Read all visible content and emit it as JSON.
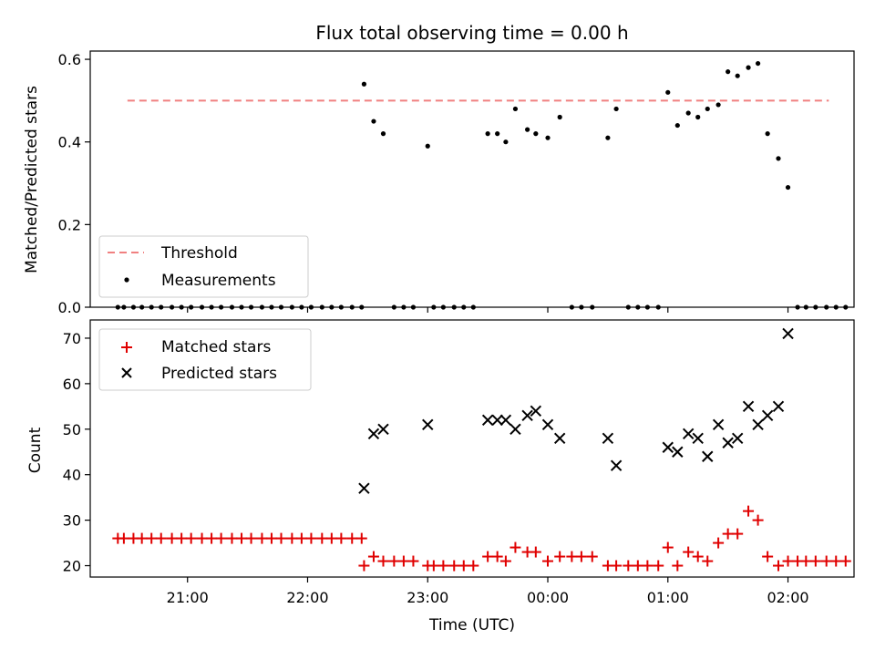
{
  "chart_data": [
    {
      "type": "scatter",
      "title": "Flux total observing time = 0.00 h",
      "xlabel": "",
      "ylabel": "Matched/Predicted stars",
      "ylim": [
        0,
        0.62
      ],
      "yticks": [
        "0.0",
        "0.2",
        "0.4",
        "0.6"
      ],
      "xlim_hours": [
        -3.31,
        3.05
      ],
      "legend_position": "lower-left",
      "threshold": {
        "name": "Threshold",
        "value": 0.5,
        "x_range_hours": [
          -3.0,
          2.84
        ],
        "color": "#f08080"
      },
      "series": [
        {
          "name": "Measurements",
          "color": "#000000",
          "points": [
            [
              -3.08,
              0
            ],
            [
              -3.03,
              0
            ],
            [
              -2.95,
              0
            ],
            [
              -2.88,
              0
            ],
            [
              -2.8,
              0
            ],
            [
              -2.72,
              0
            ],
            [
              -2.63,
              0
            ],
            [
              -2.55,
              0
            ],
            [
              -2.47,
              0
            ],
            [
              -2.38,
              0
            ],
            [
              -2.3,
              0
            ],
            [
              -2.22,
              0
            ],
            [
              -2.13,
              0
            ],
            [
              -2.05,
              0
            ],
            [
              -1.97,
              0
            ],
            [
              -1.88,
              0
            ],
            [
              -1.8,
              0
            ],
            [
              -1.72,
              0
            ],
            [
              -1.63,
              0
            ],
            [
              -1.55,
              0
            ],
            [
              -1.47,
              0
            ],
            [
              -1.38,
              0
            ],
            [
              -1.3,
              0
            ],
            [
              -1.22,
              0
            ],
            [
              -1.13,
              0
            ],
            [
              -1.05,
              0
            ],
            [
              -1.03,
              0.54
            ],
            [
              -0.95,
              0.45
            ],
            [
              -0.87,
              0.42
            ],
            [
              -0.78,
              0
            ],
            [
              -0.7,
              0
            ],
            [
              -0.62,
              0
            ],
            [
              -0.5,
              0.39
            ],
            [
              -0.45,
              0
            ],
            [
              -0.37,
              0
            ],
            [
              -0.28,
              0
            ],
            [
              -0.2,
              0
            ],
            [
              -0.12,
              0
            ],
            [
              0.0,
              0.42
            ],
            [
              0.08,
              0.42
            ],
            [
              0.15,
              0.4
            ],
            [
              0.23,
              0.48
            ],
            [
              0.33,
              0.43
            ],
            [
              0.4,
              0.42
            ],
            [
              0.5,
              0.41
            ],
            [
              0.6,
              0.46
            ],
            [
              0.7,
              0
            ],
            [
              0.78,
              0
            ],
            [
              0.87,
              0
            ],
            [
              1.0,
              0.41
            ],
            [
              1.07,
              0.48
            ],
            [
              1.17,
              0
            ],
            [
              1.25,
              0
            ],
            [
              1.33,
              0
            ],
            [
              1.42,
              0
            ],
            [
              1.5,
              0.52
            ],
            [
              1.58,
              0.44
            ],
            [
              1.67,
              0.47
            ],
            [
              1.75,
              0.46
            ],
            [
              1.83,
              0.48
            ],
            [
              1.92,
              0.49
            ],
            [
              2.0,
              0.57
            ],
            [
              2.08,
              0.56
            ],
            [
              2.17,
              0.58
            ],
            [
              2.25,
              0.59
            ],
            [
              2.33,
              0.42
            ],
            [
              2.42,
              0.36
            ],
            [
              2.5,
              0.29
            ],
            [
              2.58,
              0
            ],
            [
              2.65,
              0
            ],
            [
              2.73,
              0
            ],
            [
              2.82,
              0
            ],
            [
              2.9,
              0
            ],
            [
              2.98,
              0
            ]
          ]
        }
      ]
    },
    {
      "type": "scatter",
      "title": "",
      "xlabel": "Time (UTC)",
      "ylabel": "Count",
      "ylim": [
        17.5,
        74
      ],
      "yticks": [
        "20",
        "30",
        "40",
        "50",
        "60",
        "70"
      ],
      "xlim_hours": [
        -3.31,
        3.05
      ],
      "xticks": [
        {
          "label": "21:00",
          "hours": -2.5
        },
        {
          "label": "22:00",
          "hours": -1.5
        },
        {
          "label": "23:00",
          "hours": -0.5
        },
        {
          "label": "00:00",
          "hours": 0.5
        },
        {
          "label": "01:00",
          "hours": 1.5
        },
        {
          "label": "02:00",
          "hours": 2.5
        }
      ],
      "legend_position": "upper-left",
      "series": [
        {
          "name": "Matched stars",
          "color": "#e00000",
          "marker": "plus",
          "points": [
            [
              -3.08,
              26
            ],
            [
              -3.03,
              26
            ],
            [
              -2.95,
              26
            ],
            [
              -2.88,
              26
            ],
            [
              -2.8,
              26
            ],
            [
              -2.72,
              26
            ],
            [
              -2.63,
              26
            ],
            [
              -2.55,
              26
            ],
            [
              -2.47,
              26
            ],
            [
              -2.38,
              26
            ],
            [
              -2.3,
              26
            ],
            [
              -2.22,
              26
            ],
            [
              -2.13,
              26
            ],
            [
              -2.05,
              26
            ],
            [
              -1.97,
              26
            ],
            [
              -1.88,
              26
            ],
            [
              -1.8,
              26
            ],
            [
              -1.72,
              26
            ],
            [
              -1.63,
              26
            ],
            [
              -1.55,
              26
            ],
            [
              -1.47,
              26
            ],
            [
              -1.38,
              26
            ],
            [
              -1.3,
              26
            ],
            [
              -1.22,
              26
            ],
            [
              -1.13,
              26
            ],
            [
              -1.05,
              26
            ],
            [
              -1.03,
              20
            ],
            [
              -0.95,
              22
            ],
            [
              -0.87,
              21
            ],
            [
              -0.78,
              21
            ],
            [
              -0.7,
              21
            ],
            [
              -0.62,
              21
            ],
            [
              -0.5,
              20
            ],
            [
              -0.45,
              20
            ],
            [
              -0.37,
              20
            ],
            [
              -0.28,
              20
            ],
            [
              -0.2,
              20
            ],
            [
              -0.12,
              20
            ],
            [
              0.0,
              22
            ],
            [
              0.08,
              22
            ],
            [
              0.15,
              21
            ],
            [
              0.23,
              24
            ],
            [
              0.33,
              23
            ],
            [
              0.4,
              23
            ],
            [
              0.5,
              21
            ],
            [
              0.6,
              22
            ],
            [
              0.7,
              22
            ],
            [
              0.78,
              22
            ],
            [
              0.87,
              22
            ],
            [
              1.0,
              20
            ],
            [
              1.07,
              20
            ],
            [
              1.17,
              20
            ],
            [
              1.25,
              20
            ],
            [
              1.33,
              20
            ],
            [
              1.42,
              20
            ],
            [
              1.5,
              24
            ],
            [
              1.58,
              20
            ],
            [
              1.67,
              23
            ],
            [
              1.75,
              22
            ],
            [
              1.83,
              21
            ],
            [
              1.92,
              25
            ],
            [
              2.0,
              27
            ],
            [
              2.08,
              27
            ],
            [
              2.17,
              32
            ],
            [
              2.25,
              30
            ],
            [
              2.33,
              22
            ],
            [
              2.42,
              20
            ],
            [
              2.5,
              21
            ],
            [
              2.58,
              21
            ],
            [
              2.65,
              21
            ],
            [
              2.73,
              21
            ],
            [
              2.82,
              21
            ],
            [
              2.9,
              21
            ],
            [
              2.98,
              21
            ]
          ]
        },
        {
          "name": "Predicted stars",
          "color": "#000000",
          "marker": "x",
          "points": [
            [
              -1.03,
              37
            ],
            [
              -0.95,
              49
            ],
            [
              -0.87,
              50
            ],
            [
              -0.5,
              51
            ],
            [
              0.0,
              52
            ],
            [
              0.08,
              52
            ],
            [
              0.15,
              52
            ],
            [
              0.23,
              50
            ],
            [
              0.33,
              53
            ],
            [
              0.4,
              54
            ],
            [
              0.5,
              51
            ],
            [
              0.6,
              48
            ],
            [
              1.0,
              48
            ],
            [
              1.07,
              42
            ],
            [
              1.5,
              46
            ],
            [
              1.58,
              45
            ],
            [
              1.67,
              49
            ],
            [
              1.75,
              48
            ],
            [
              1.83,
              44
            ],
            [
              1.92,
              51
            ],
            [
              2.0,
              47
            ],
            [
              2.08,
              48
            ],
            [
              2.17,
              55
            ],
            [
              2.25,
              51
            ],
            [
              2.33,
              53
            ],
            [
              2.42,
              55
            ],
            [
              2.5,
              71
            ]
          ]
        }
      ]
    }
  ]
}
